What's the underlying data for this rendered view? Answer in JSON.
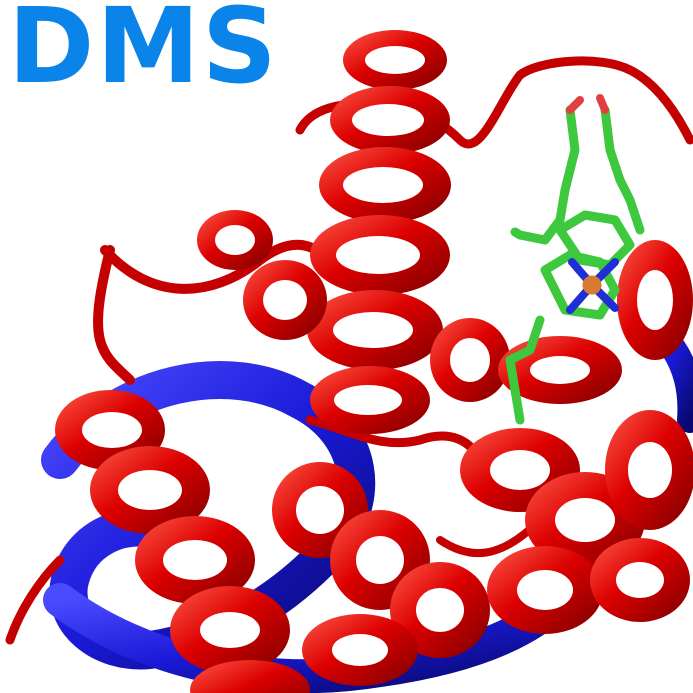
{
  "logo": {
    "text": "DMS",
    "color": "#0a84e8"
  },
  "colors": {
    "helix_red": "#dc0000",
    "helix_red_dark": "#8a0000",
    "helix_red_light": "#ff6a5a",
    "helix_blue": "#1a1ad8",
    "helix_blue_dark": "#0a0a80",
    "heme_green": "#3ec83e",
    "heme_nitrogen": "#1f2fd6",
    "heme_oxygen": "#e04040",
    "heme_iron": "#d87a30",
    "background": "#ffffff"
  }
}
